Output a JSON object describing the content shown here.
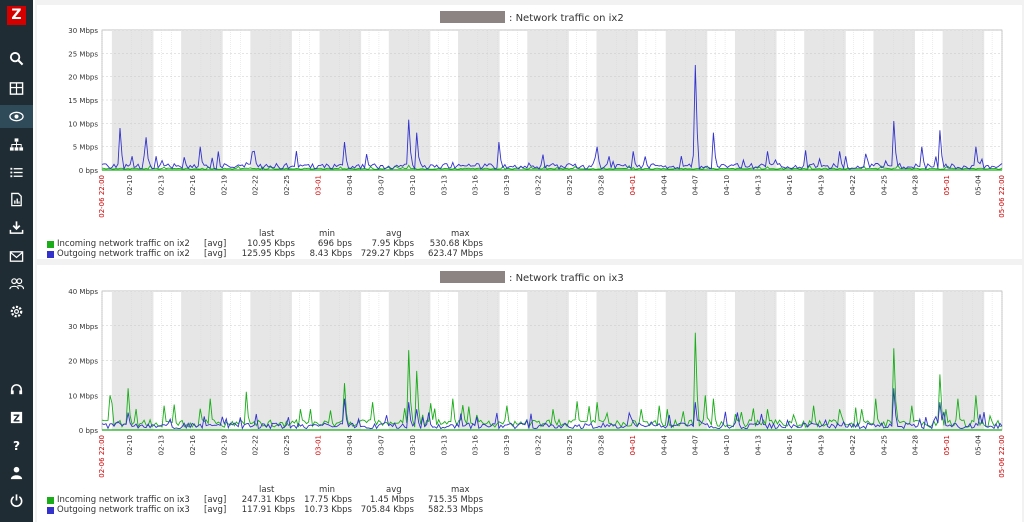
{
  "sidebar": {
    "logo": "Z",
    "icons": [
      "search-icon",
      "dashboard-icon",
      "monitoring-eye-icon",
      "network-map-icon",
      "inventory-list-icon",
      "reports-icon",
      "data-collection-download-icon",
      "alerts-mail-icon",
      "users-icon",
      "settings-gear-icon",
      "support-headset-icon",
      "share-icon",
      "help-icon",
      "user-profile-icon",
      "sign-out-power-icon"
    ],
    "active": "monitoring-eye-icon"
  },
  "colors": {
    "incoming": "#1aad19",
    "outgoing": "#3333cc",
    "weekend_shade": "#e6e6e6",
    "axis_red": "#cc0000"
  },
  "graphs": [
    {
      "title": "Network traffic on ix2",
      "legend_headers": [
        "last",
        "min",
        "avg",
        "max"
      ],
      "legend": [
        {
          "name": "Incoming network traffic on ix2",
          "fn": "[avg]",
          "last": "10.95 Kbps",
          "min": "696 bps",
          "avg": "7.95 Kbps",
          "max": "530.68 Kbps"
        },
        {
          "name": "Outgoing network traffic on ix2",
          "fn": "[avg]",
          "last": "125.95 Kbps",
          "min": "8.43 Kbps",
          "avg": "729.27 Kbps",
          "max": "623.47 Mbps"
        }
      ],
      "chart_data": {
        "type": "line",
        "y_ticks": [
          "0 bps",
          "5 Mbps",
          "10 Mbps",
          "15 Mbps",
          "20 Mbps",
          "25 Mbps",
          "30 Mbps"
        ],
        "ylim": [
          0,
          30
        ],
        "x_start_label": "02-06 22:00",
        "x_end_label": "05-06 22:00",
        "x_ticks": [
          "02-10",
          "02-13",
          "02-16",
          "02-19",
          "02-22",
          "02-25",
          "03-01",
          "03-04",
          "03-07",
          "03-10",
          "03-13",
          "03-16",
          "03-19",
          "03-22",
          "03-25",
          "03-28",
          "04-01",
          "04-04",
          "04-07",
          "04-10",
          "04-13",
          "04-16",
          "04-19",
          "04-22",
          "04-25",
          "04-28",
          "05-01",
          "05-04"
        ],
        "red_ticks": [
          "03-01",
          "04-01",
          "05-01"
        ],
        "outgoing_spikes": [
          [
            0.02,
            9
          ],
          [
            0.05,
            7
          ],
          [
            0.11,
            5
          ],
          [
            0.17,
            4
          ],
          [
            0.27,
            6
          ],
          [
            0.34,
            10.8
          ],
          [
            0.35,
            8
          ],
          [
            0.44,
            6
          ],
          [
            0.55,
            5
          ],
          [
            0.59,
            4
          ],
          [
            0.66,
            22.5
          ],
          [
            0.68,
            8
          ],
          [
            0.74,
            4
          ],
          [
            0.82,
            4
          ],
          [
            0.88,
            10.5
          ],
          [
            0.91,
            5
          ],
          [
            0.93,
            8.5
          ],
          [
            0.97,
            5
          ]
        ],
        "incoming_spikes": [
          [
            0.34,
            1
          ],
          [
            0.94,
            0.8
          ]
        ]
      }
    },
    {
      "title": "Network traffic on ix3",
      "legend_headers": [
        "last",
        "min",
        "avg",
        "max"
      ],
      "legend": [
        {
          "name": "Incoming network traffic on ix3",
          "fn": "[avg]",
          "last": "247.31 Kbps",
          "min": "17.75 Kbps",
          "avg": "1.45 Mbps",
          "max": "715.35 Mbps"
        },
        {
          "name": "Outgoing network traffic on ix3",
          "fn": "[avg]",
          "last": "117.91 Kbps",
          "min": "10.73 Kbps",
          "avg": "705.84 Kbps",
          "max": "582.53 Mbps"
        }
      ],
      "chart_data": {
        "type": "line",
        "y_ticks": [
          "0 bps",
          "10 Mbps",
          "20 Mbps",
          "30 Mbps",
          "40 Mbps"
        ],
        "ylim": [
          0,
          40
        ],
        "x_start_label": "02-06 22:00",
        "x_end_label": "05-06 22:00",
        "x_ticks": [
          "02-10",
          "02-13",
          "02-16",
          "02-19",
          "02-22",
          "02-25",
          "03-01",
          "03-04",
          "03-07",
          "03-10",
          "03-13",
          "03-16",
          "03-19",
          "03-22",
          "03-25",
          "03-28",
          "04-01",
          "04-04",
          "04-07",
          "04-10",
          "04-13",
          "04-16",
          "04-19",
          "04-22",
          "04-25",
          "04-28",
          "05-01",
          "05-04"
        ],
        "red_ticks": [
          "03-01",
          "04-01",
          "05-01"
        ],
        "incoming_spikes": [
          [
            0.01,
            10
          ],
          [
            0.03,
            12
          ],
          [
            0.07,
            7
          ],
          [
            0.12,
            9
          ],
          [
            0.16,
            11
          ],
          [
            0.22,
            6
          ],
          [
            0.27,
            13.5
          ],
          [
            0.3,
            8
          ],
          [
            0.34,
            23
          ],
          [
            0.35,
            17
          ],
          [
            0.39,
            9
          ],
          [
            0.45,
            7
          ],
          [
            0.5,
            6
          ],
          [
            0.55,
            8
          ],
          [
            0.6,
            6
          ],
          [
            0.62,
            7
          ],
          [
            0.66,
            28
          ],
          [
            0.67,
            10
          ],
          [
            0.68,
            9
          ],
          [
            0.74,
            6
          ],
          [
            0.79,
            7
          ],
          [
            0.82,
            6
          ],
          [
            0.86,
            9
          ],
          [
            0.88,
            23.5
          ],
          [
            0.9,
            7
          ],
          [
            0.93,
            16
          ],
          [
            0.95,
            9
          ],
          [
            0.97,
            10
          ]
        ],
        "outgoing_spikes": [
          [
            0.03,
            5
          ],
          [
            0.27,
            9
          ],
          [
            0.34,
            8
          ],
          [
            0.35,
            6
          ],
          [
            0.66,
            8
          ],
          [
            0.88,
            12
          ],
          [
            0.93,
            8
          ]
        ]
      }
    }
  ]
}
